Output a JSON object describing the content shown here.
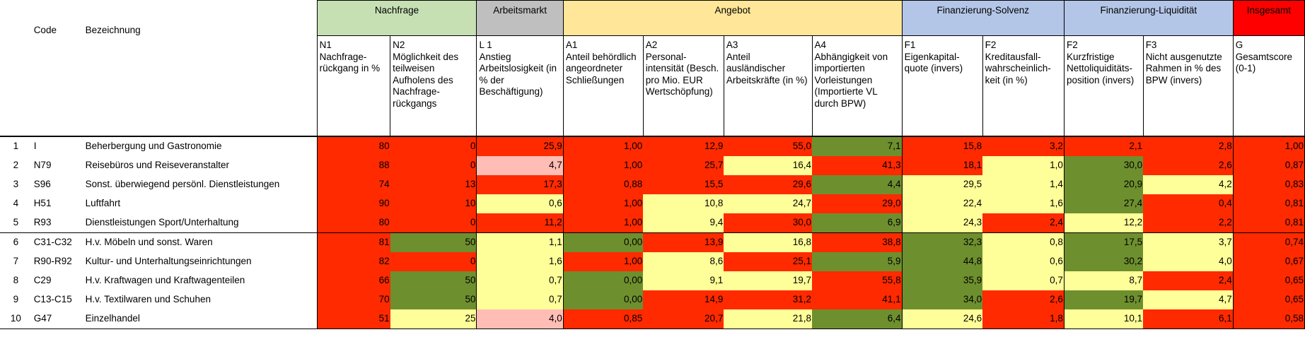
{
  "header": {
    "code_label": "Code",
    "name_label": "Bezeichnung",
    "groups": [
      {
        "label": "Nachfrage",
        "color": "#c6e0b4",
        "span": 2
      },
      {
        "label": "Arbeitsmarkt",
        "color": "#bfbfbf",
        "span": 1
      },
      {
        "label": "Angebot",
        "color": "#ffe699",
        "span": 4
      },
      {
        "label": "Finanzierung-Solvenz",
        "color": "#b4c6e7",
        "span": 2
      },
      {
        "label": "Finanzierung-Liquidität",
        "color": "#b4c6e7",
        "span": 2
      },
      {
        "label": "Insgesamt",
        "color": "#ff0000",
        "span": 1
      }
    ],
    "columns": [
      {
        "code": "N1",
        "desc": "Nachfrage-rückgang in %"
      },
      {
        "code": "N2",
        "desc": "Möglichkeit des teilweisen Aufholens des Nachfrage-rückgangs"
      },
      {
        "code": "L 1",
        "desc": "Anstieg Arbeitslosigkeit (in % der Beschäftigung)"
      },
      {
        "code": "A1",
        "desc": "Anteil behördlich angeordneter Schließungen"
      },
      {
        "code": "A2",
        "desc": "Personal-intensität (Besch. pro Mio. EUR Wertschöpfung)"
      },
      {
        "code": "A3",
        "desc": "Anteil ausländischer Arbeitskräfte (in %)"
      },
      {
        "code": "A4",
        "desc": "Abhängigkeit von importierten Vorleistungen (Importierte VL durch BPW)"
      },
      {
        "code": "F1",
        "desc": "Eigenkapital-quote (invers)"
      },
      {
        "code": "F2",
        "desc": "Kreditausfall-wahrscheinlich-keit (in %)"
      },
      {
        "code": "F2",
        "desc": "Kurzfristige Nettoliquiditäts-position (invers)"
      },
      {
        "code": "F3",
        "desc": "Nicht ausgenutzte Rahmen in % des BPW (invers)"
      },
      {
        "code": "G",
        "desc": "Gesamtscore (0-1)"
      }
    ]
  },
  "rows": [
    {
      "n": "1",
      "code": "I",
      "name": "Beherbergung und Gastronomie",
      "values": [
        "80",
        "0",
        "25,9",
        "1,00",
        "12,9",
        "55,0",
        "7,1",
        "15,8",
        "3,2",
        "2,1",
        "2,8",
        "1,00"
      ],
      "colors": [
        "r",
        "r",
        "r",
        "r",
        "r",
        "r",
        "gr",
        "r",
        "r",
        "r",
        "r",
        "r"
      ]
    },
    {
      "n": "2",
      "code": "N79",
      "name": "Reisebüros und Reiseveranstalter",
      "values": [
        "88",
        "0",
        "4,7",
        "1,00",
        "25,7",
        "16,4",
        "41,3",
        "18,1",
        "1,0",
        "30,0",
        "2,6",
        "0,87"
      ],
      "colors": [
        "r",
        "r",
        "p",
        "r",
        "r",
        "y",
        "r",
        "r",
        "y",
        "gr",
        "r",
        "r"
      ]
    },
    {
      "n": "3",
      "code": "S96",
      "name": "Sonst. überwiegend persönl. Dienstleistungen",
      "values": [
        "74",
        "13",
        "17,3",
        "0,88",
        "15,5",
        "29,6",
        "4,4",
        "29,5",
        "1,4",
        "20,9",
        "4,2",
        "0,83"
      ],
      "colors": [
        "r",
        "r",
        "r",
        "r",
        "r",
        "r",
        "gr",
        "y",
        "y",
        "gr",
        "y",
        "r"
      ]
    },
    {
      "n": "4",
      "code": "H51",
      "name": "Luftfahrt",
      "values": [
        "90",
        "10",
        "0,6",
        "1,00",
        "10,8",
        "24,7",
        "29,0",
        "22,4",
        "1,6",
        "27,4",
        "0,4",
        "0,81"
      ],
      "colors": [
        "r",
        "r",
        "y",
        "r",
        "y",
        "y",
        "r",
        "y",
        "y",
        "gr",
        "r",
        "r"
      ]
    },
    {
      "n": "5",
      "code": "R93",
      "name": "Dienstleistungen Sport/Unterhaltung",
      "values": [
        "80",
        "0",
        "11,2",
        "1,00",
        "9,4",
        "30,0",
        "6,9",
        "24,3",
        "2,4",
        "12,2",
        "2,2",
        "0,81"
      ],
      "colors": [
        "r",
        "r",
        "r",
        "r",
        "y",
        "r",
        "gr",
        "y",
        "r",
        "y",
        "r",
        "r"
      ]
    },
    {
      "n": "6",
      "code": "C31-C32",
      "name": "H.v. Möbeln und sonst. Waren",
      "values": [
        "81",
        "50",
        "1,1",
        "0,00",
        "13,9",
        "16,8",
        "38,8",
        "32,3",
        "0,8",
        "17,5",
        "3,7",
        "0,74"
      ],
      "colors": [
        "r",
        "gr",
        "y",
        "gr",
        "r",
        "y",
        "r",
        "gr",
        "y",
        "gr",
        "y",
        "r"
      ]
    },
    {
      "n": "7",
      "code": "R90-R92",
      "name": "Kultur- und Unterhaltungseinrichtungen",
      "values": [
        "82",
        "0",
        "1,6",
        "1,00",
        "8,6",
        "25,1",
        "5,9",
        "44,8",
        "0,6",
        "30,2",
        "4,0",
        "0,67"
      ],
      "colors": [
        "r",
        "r",
        "y",
        "r",
        "y",
        "r",
        "gr",
        "gr",
        "y",
        "gr",
        "y",
        "r"
      ]
    },
    {
      "n": "8",
      "code": "C29",
      "name": "H.v. Kraftwagen und Kraftwagenteilen",
      "values": [
        "66",
        "50",
        "0,7",
        "0,00",
        "9,1",
        "19,7",
        "55,8",
        "35,9",
        "0,7",
        "8,7",
        "2,4",
        "0,65"
      ],
      "colors": [
        "r",
        "gr",
        "y",
        "gr",
        "y",
        "y",
        "r",
        "gr",
        "y",
        "y",
        "r",
        "r"
      ]
    },
    {
      "n": "9",
      "code": "C13-C15",
      "name": "H.v. Textilwaren und Schuhen",
      "values": [
        "70",
        "50",
        "0,7",
        "0,00",
        "14,9",
        "31,2",
        "41,1",
        "34,0",
        "2,6",
        "19,7",
        "4,7",
        "0,65"
      ],
      "colors": [
        "r",
        "gr",
        "y",
        "gr",
        "r",
        "r",
        "r",
        "gr",
        "r",
        "gr",
        "y",
        "r"
      ]
    },
    {
      "n": "10",
      "code": "G47",
      "name": "Einzelhandel",
      "values": [
        "51",
        "25",
        "4,0",
        "0,85",
        "20,7",
        "21,8",
        "6,4",
        "24,6",
        "1,8",
        "10,1",
        "6,1",
        "0,58"
      ],
      "colors": [
        "r",
        "y",
        "p",
        "r",
        "r",
        "y",
        "gr",
        "y",
        "r",
        "y",
        "r",
        "r"
      ]
    }
  ]
}
